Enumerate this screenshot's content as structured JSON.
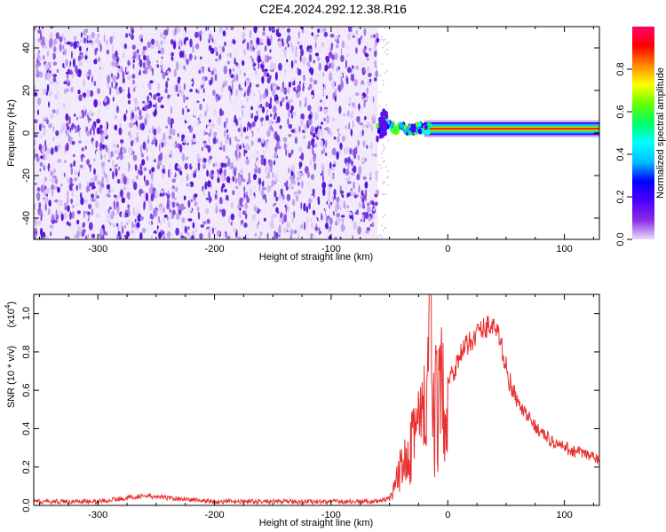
{
  "title": "C2E4.2024.292.12.38.R16",
  "colors": {
    "snr_line": "#e83030",
    "axis": "#000000"
  },
  "chart_data": [
    {
      "type": "heatmap",
      "xlabel": "Height of straight line (km)",
      "ylabel": "Frequency (Hz)",
      "xlim": [
        -355,
        130
      ],
      "ylim": [
        -50,
        50
      ],
      "x_ticks": [
        -300,
        -200,
        -100,
        0,
        100
      ],
      "y_ticks": [
        -40,
        -20,
        0,
        20,
        40
      ],
      "noise_region_x": [
        -355,
        -60
      ],
      "signal_x_range": [
        -60,
        130
      ],
      "signal_frequency_hz": 2,
      "signal_curve": [
        {
          "x": -58,
          "y": 7
        },
        {
          "x": -52,
          "y": 4
        },
        {
          "x": -45,
          "y": 2
        },
        {
          "x": -40,
          "y": 3
        },
        {
          "x": -33,
          "y": 1.5
        },
        {
          "x": -25,
          "y": 2.5
        },
        {
          "x": -15,
          "y": 2
        },
        {
          "x": 0,
          "y": 2
        },
        {
          "x": 130,
          "y": 2
        }
      ],
      "colorbar": {
        "label": "Normalized spectral amplitude",
        "range": [
          0,
          1
        ],
        "ticks": [
          0.0,
          0.2,
          0.4,
          0.6,
          0.8
        ],
        "tick_labels": [
          "0.0",
          "0.2",
          "0.4",
          "0.6",
          "0.8"
        ],
        "colormap": [
          "#e8dcfa",
          "#8a2be2",
          "#4b00ff",
          "#0000ff",
          "#00bfff",
          "#00ffff",
          "#00ff66",
          "#66ff00",
          "#ffff00",
          "#ff8800",
          "#ff0000",
          "#ff0066"
        ]
      }
    },
    {
      "type": "line",
      "xlabel": "Height of straight line (km)",
      "ylabel": "SNR (10 * v/v)",
      "yscale_label": "(x10",
      "yscale_exp": "4",
      "yscale_close": ")",
      "xlim": [
        -355,
        130
      ],
      "ylim": [
        0,
        1.1
      ],
      "x_ticks": [
        -300,
        -200,
        -100,
        0,
        100
      ],
      "y_ticks": [
        0.0,
        0.2,
        0.4,
        0.6,
        0.8,
        1.0
      ],
      "y_tick_labels": [
        "0.0",
        "0.2",
        "0.4",
        "0.6",
        "0.8",
        "1.0"
      ],
      "series": [
        {
          "x": [
            -355,
            -300,
            -262,
            -200,
            -150,
            -100,
            -60,
            -48,
            -44,
            -40,
            -36,
            -32,
            -28,
            -24,
            -20,
            -17,
            -15,
            -13,
            -10,
            -5,
            0,
            5,
            10,
            15,
            20,
            25,
            30,
            35,
            40,
            45,
            50,
            55,
            60,
            70,
            80,
            90,
            100,
            110,
            120,
            130
          ],
          "y": [
            0.02,
            0.02,
            0.05,
            0.02,
            0.02,
            0.02,
            0.02,
            0.04,
            0.12,
            0.2,
            0.3,
            0.35,
            0.45,
            0.4,
            0.48,
            0.6,
            1.1,
            0.45,
            0.5,
            0.55,
            0.65,
            0.7,
            0.78,
            0.82,
            0.86,
            0.9,
            0.92,
            0.94,
            0.93,
            0.86,
            0.72,
            0.6,
            0.53,
            0.45,
            0.38,
            0.33,
            0.3,
            0.28,
            0.26,
            0.24
          ]
        }
      ]
    }
  ]
}
